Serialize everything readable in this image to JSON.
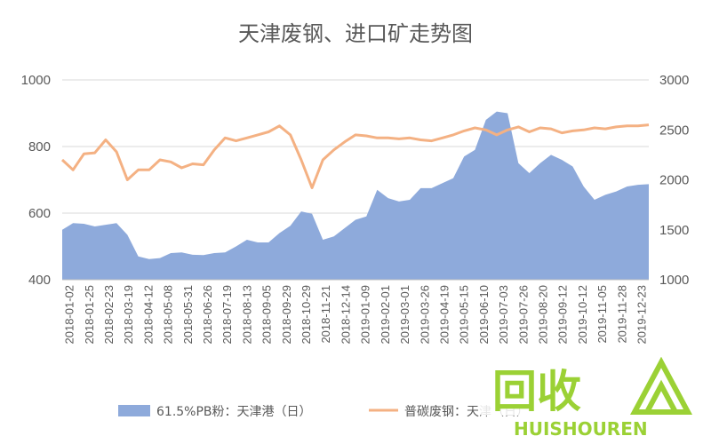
{
  "chart_data": {
    "type": "area+line",
    "title": "天津废钢、进口矿走势图",
    "y_left": {
      "ylim": [
        400,
        1000
      ],
      "ticks": [
        "1000",
        "800",
        "600",
        "400"
      ],
      "values": [
        1000,
        800,
        600,
        400
      ]
    },
    "y_right": {
      "ylim": [
        1000,
        3000
      ],
      "ticks": [
        "3000",
        "2500",
        "2000",
        "1500",
        "1000"
      ],
      "values": [
        3000,
        2500,
        2000,
        1500,
        1000
      ]
    },
    "x_tick_labels": [
      "2018-01-02",
      "2018-01-25",
      "2018-02-23",
      "2018-03-19",
      "2018-04-12",
      "2018-05-08",
      "2018-05-31",
      "2018-06-26",
      "2018-07-19",
      "2018-08-13",
      "2018-09-05",
      "2018-09-29",
      "2018-10-29",
      "2018-11-21",
      "2018-12-14",
      "2019-01-09",
      "2019-02-01",
      "2019-03-01",
      "2019-03-26",
      "2019-04-19",
      "2019-05-15",
      "2019-06-10",
      "2019-07-03",
      "2019-07-26",
      "2019-08-20",
      "2019-09-12",
      "2019-10-12",
      "2019-11-05",
      "2019-11-28",
      "2019-12-23"
    ],
    "grid": "horizontal",
    "legend_position": "bottom",
    "series": [
      {
        "name": "61.5%PB粉：天津港（日）",
        "kind": "area",
        "axis": "left",
        "color": "#8eaadb",
        "values": [
          550,
          570,
          568,
          560,
          565,
          570,
          535,
          470,
          462,
          465,
          480,
          482,
          475,
          474,
          480,
          482,
          500,
          520,
          512,
          512,
          540,
          562,
          605,
          598,
          520,
          530,
          555,
          580,
          590,
          670,
          645,
          635,
          640,
          675,
          675,
          690,
          705,
          770,
          790,
          880,
          905,
          900,
          750,
          720,
          750,
          775,
          760,
          740,
          680,
          640,
          655,
          665,
          680,
          685,
          687
        ]
      },
      {
        "name": "普碳废钢：天津（日）",
        "kind": "line",
        "axis": "right",
        "color": "#f4b183",
        "values": [
          2200,
          2100,
          2260,
          2270,
          2400,
          2280,
          2000,
          2100,
          2100,
          2200,
          2180,
          2120,
          2160,
          2150,
          2300,
          2420,
          2390,
          2420,
          2450,
          2480,
          2540,
          2450,
          2200,
          1920,
          2200,
          2300,
          2380,
          2450,
          2440,
          2420,
          2420,
          2410,
          2420,
          2400,
          2390,
          2420,
          2450,
          2490,
          2520,
          2500,
          2450,
          2500,
          2530,
          2480,
          2520,
          2510,
          2470,
          2490,
          2500,
          2520,
          2510,
          2530,
          2540,
          2540,
          2550
        ]
      }
    ]
  },
  "watermark": {
    "text": "回收",
    "sub": "HUISHOUREN"
  }
}
